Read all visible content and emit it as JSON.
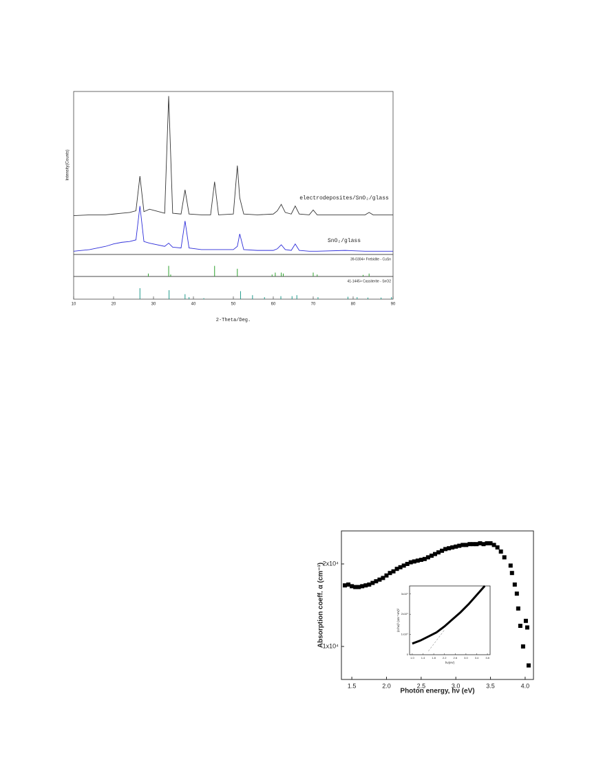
{
  "chart_data": [
    {
      "type": "line",
      "xlabel": "2-Theta/Deg.",
      "ylabel": "Intensity(Counts)",
      "x": [
        10,
        14,
        18,
        20,
        22,
        24,
        25.6,
        26.6,
        27.6,
        29,
        32.8,
        33.8,
        34.8,
        36.9,
        37.9,
        38.9,
        42,
        44.3,
        45.3,
        46.3,
        50,
        51,
        51.6,
        52.6,
        56,
        60,
        61,
        62,
        63,
        64.5,
        65.5,
        66.5,
        69,
        70,
        71,
        78,
        83,
        84,
        85,
        90
      ],
      "xlim": [
        10,
        90
      ],
      "xticks": [
        10,
        20,
        30,
        40,
        50,
        60,
        70,
        80,
        90
      ],
      "ylim": [
        0,
        100
      ],
      "series": [
        {
          "name": "electrodeposites/SnO₂/glass",
          "color": "#333333",
          "values": [
            24,
            24.5,
            24.5,
            25,
            25.5,
            26,
            27,
            48.5,
            26.5,
            28,
            25.5,
            98,
            25.5,
            25,
            40,
            25,
            24.5,
            24.5,
            45,
            24.5,
            25,
            55,
            35,
            25,
            24.5,
            25,
            27,
            31,
            26,
            25,
            30,
            25,
            24.5,
            27.5,
            24.5,
            24.5,
            24.5,
            26,
            24.5,
            24.5
          ]
        },
        {
          "name": "SnO₂/glass",
          "color": "#2b2bd9",
          "values": [
            2,
            3,
            5,
            6.5,
            7.5,
            8,
            9,
            30,
            8,
            7,
            5,
            7,
            4.5,
            4,
            20.7,
            4,
            3,
            3,
            3,
            3,
            3,
            5,
            12.7,
            3,
            2.5,
            2.5,
            3.5,
            6,
            3,
            2.5,
            6.5,
            2.5,
            2,
            2,
            2,
            2.5,
            2,
            2,
            2,
            2
          ]
        }
      ],
      "references": [
        {
          "name": "39-0304> Frebidite - CuSn",
          "color": "#2ca02c",
          "x": [
            28.7,
            33.8,
            34.3,
            45.3,
            51,
            59.7,
            60.5,
            62,
            62.5,
            70,
            71,
            82.5,
            84
          ],
          "values": [
            15,
            55,
            10,
            55,
            40,
            10,
            20,
            20,
            15,
            20,
            10,
            8,
            15
          ]
        },
        {
          "name": "41-1445> Cassiterite - SnO2",
          "color": "#1f9a8a",
          "x": [
            26.6,
            33.9,
            37.9,
            38.9,
            42.6,
            51.8,
            54.8,
            57.8,
            61.9,
            64.7,
            65.9,
            71.2,
            78.7,
            81,
            83.7,
            87,
            89.6
          ],
          "values": [
            55,
            45,
            25,
            10,
            5,
            40,
            20,
            10,
            15,
            15,
            20,
            10,
            12,
            10,
            8,
            8,
            10
          ]
        }
      ]
    },
    {
      "type": "scatter",
      "xlabel": "Photon energy, hν (eV)",
      "ylabel": "Absorption coeff. α (cm⁻¹)",
      "color": "#000000",
      "x": [
        1.4,
        1.45,
        1.5,
        1.55,
        1.6,
        1.65,
        1.7,
        1.75,
        1.8,
        1.85,
        1.9,
        1.95,
        2.0,
        2.05,
        2.1,
        2.15,
        2.2,
        2.25,
        2.3,
        2.35,
        2.4,
        2.45,
        2.5,
        2.55,
        2.6,
        2.65,
        2.7,
        2.75,
        2.8,
        2.85,
        2.9,
        2.95,
        3.0,
        3.05,
        3.1,
        3.15,
        3.2,
        3.25,
        3.3,
        3.35,
        3.4,
        3.45,
        3.5,
        3.55,
        3.6,
        3.65,
        3.7,
        3.79,
        3.81,
        3.85,
        3.88,
        3.9,
        3.93,
        3.97,
        4.01,
        4.03,
        4.05
      ],
      "values": [
        17400,
        17500,
        17300,
        17200,
        17200,
        17300,
        17400,
        17500,
        17700,
        17900,
        18100,
        18300,
        18600,
        18900,
        19100,
        19400,
        19600,
        19800,
        20000,
        20200,
        20300,
        20400,
        20500,
        20600,
        20800,
        21000,
        21200,
        21400,
        21600,
        21800,
        21900,
        22000,
        22100,
        22200,
        22300,
        22300,
        22400,
        22400,
        22400,
        22500,
        22400,
        22500,
        22500,
        22300,
        22000,
        21500,
        20800,
        19800,
        18900,
        17500,
        16400,
        14600,
        12500,
        10000,
        13100,
        12300,
        7700
      ],
      "xlim": [
        1.35,
        4.12
      ],
      "xticks": [
        1.5,
        {
          "value": 2,
          "label": "2.0"
        },
        2.5,
        {
          "value": 3,
          "label": "3.0"
        },
        3.5,
        {
          "value": 4,
          "label": "4.0"
        }
      ],
      "ylim": [
        6000,
        24000
      ],
      "yticks": [
        {
          "value": 10000,
          "label": "1x10⁴"
        },
        {
          "value": 20000,
          "label": "2x10⁴"
        }
      ]
    },
    {
      "type": "line",
      "xlabel": "hν(eV)",
      "ylabel": "(α hν)² (cm⁻¹eV)²",
      "x": [
        1.0,
        1.3,
        1.6,
        1.9,
        2.2,
        2.5,
        2.8,
        3.1,
        3.4,
        3.7
      ],
      "xlim": [
        0.9,
        3.9
      ],
      "xticks": [
        {
          "value": 1,
          "label": "1.0"
        },
        1.4,
        1.8,
        2.2,
        2.6,
        {
          "value": 3,
          "label": "3.0"
        },
        3.4,
        3.8
      ],
      "ylim": [
        0,
        3400000000
      ],
      "yticks": [
        0,
        {
          "value": 1000000000,
          "label": "1x10⁹"
        },
        {
          "value": 2000000000,
          "label": "2x10⁹"
        },
        {
          "value": 3000000000,
          "label": "3x10⁹"
        }
      ],
      "series": [
        {
          "color": "#000000",
          "values": [
            550000000,
            700000000,
            900000000,
            1100000000,
            1400000000,
            1750000000,
            2100000000,
            2500000000,
            2950000000,
            3400000000
          ]
        },
        {
          "color": "#999999",
          "dash": true,
          "values": [
            null,
            null,
            175000000,
            700000000,
            1225000000,
            null,
            null,
            null,
            null,
            null
          ]
        }
      ]
    }
  ]
}
